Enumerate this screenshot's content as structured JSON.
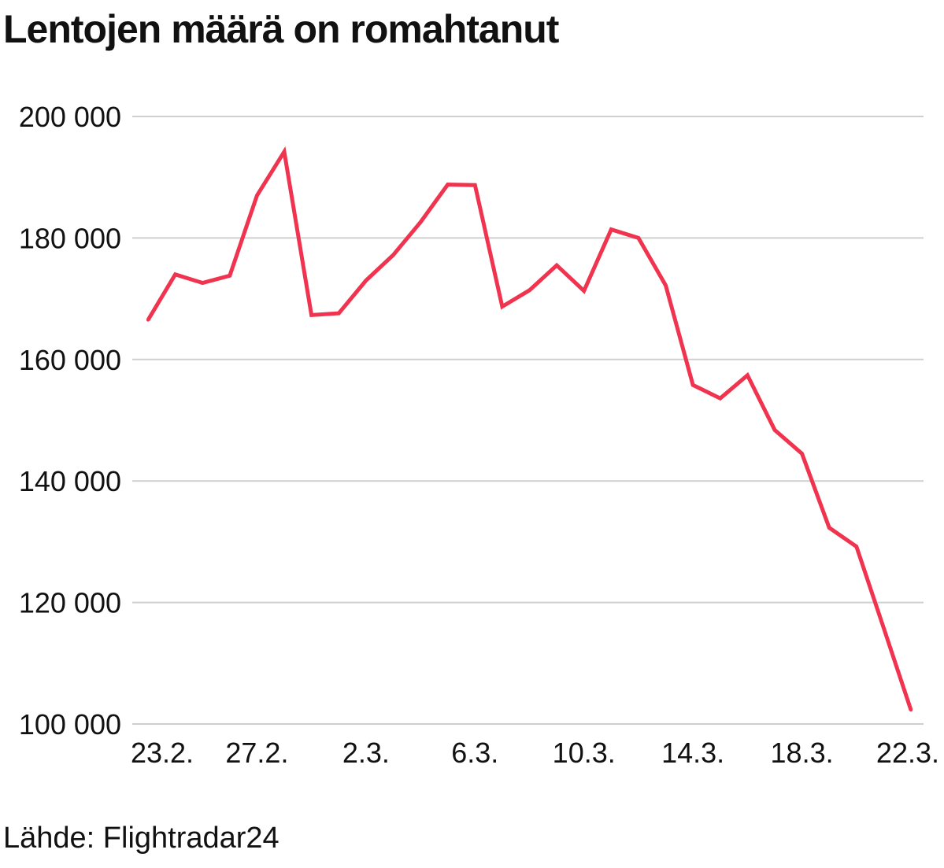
{
  "title": "Lentojen määrä on romahtanut",
  "source": "Lähde: Flightradar24",
  "colors": {
    "line": "#f0344f",
    "grid": "#cfcfcf",
    "text": "#111111"
  },
  "chart_data": {
    "type": "line",
    "title": "Lentojen määrä on romahtanut",
    "xlabel": "",
    "ylabel": "",
    "ylim": [
      100000,
      200000
    ],
    "y_ticks": [
      100000,
      120000,
      140000,
      160000,
      180000,
      200000
    ],
    "y_tick_labels": [
      "100 000",
      "120 000",
      "140 000",
      "160 000",
      "180 000",
      "200 000"
    ],
    "x_ticks": [
      {
        "index": 0,
        "label": "23.2."
      },
      {
        "index": 4,
        "label": "27.2."
      },
      {
        "index": 8,
        "label": "2.3."
      },
      {
        "index": 12,
        "label": "6.3."
      },
      {
        "index": 16,
        "label": "10.3."
      },
      {
        "index": 20,
        "label": "14.3."
      },
      {
        "index": 24,
        "label": "18.3."
      },
      {
        "index": 28,
        "label": "22.3."
      }
    ],
    "grid": true,
    "legend": "none",
    "x": [
      "23.2.",
      "24.2.",
      "25.2.",
      "26.2.",
      "27.2.",
      "28.2.",
      "29.2.",
      "1.3.",
      "2.3.",
      "3.3.",
      "4.3.",
      "5.3.",
      "6.3.",
      "7.3.",
      "8.3.",
      "9.3.",
      "10.3.",
      "11.3.",
      "12.3.",
      "13.3.",
      "14.3.",
      "15.3.",
      "16.3.",
      "17.3.",
      "18.3.",
      "19.3.",
      "20.3.",
      "21.3.",
      "22.3."
    ],
    "values": [
      166500,
      174000,
      172600,
      173800,
      187000,
      194200,
      167300,
      167600,
      173000,
      177200,
      182600,
      188800,
      188700,
      168700,
      171400,
      175500,
      171300,
      181400,
      180000,
      172200,
      155800,
      153600,
      157400,
      148400,
      144500,
      132300,
      129200,
      115800,
      102300
    ]
  }
}
